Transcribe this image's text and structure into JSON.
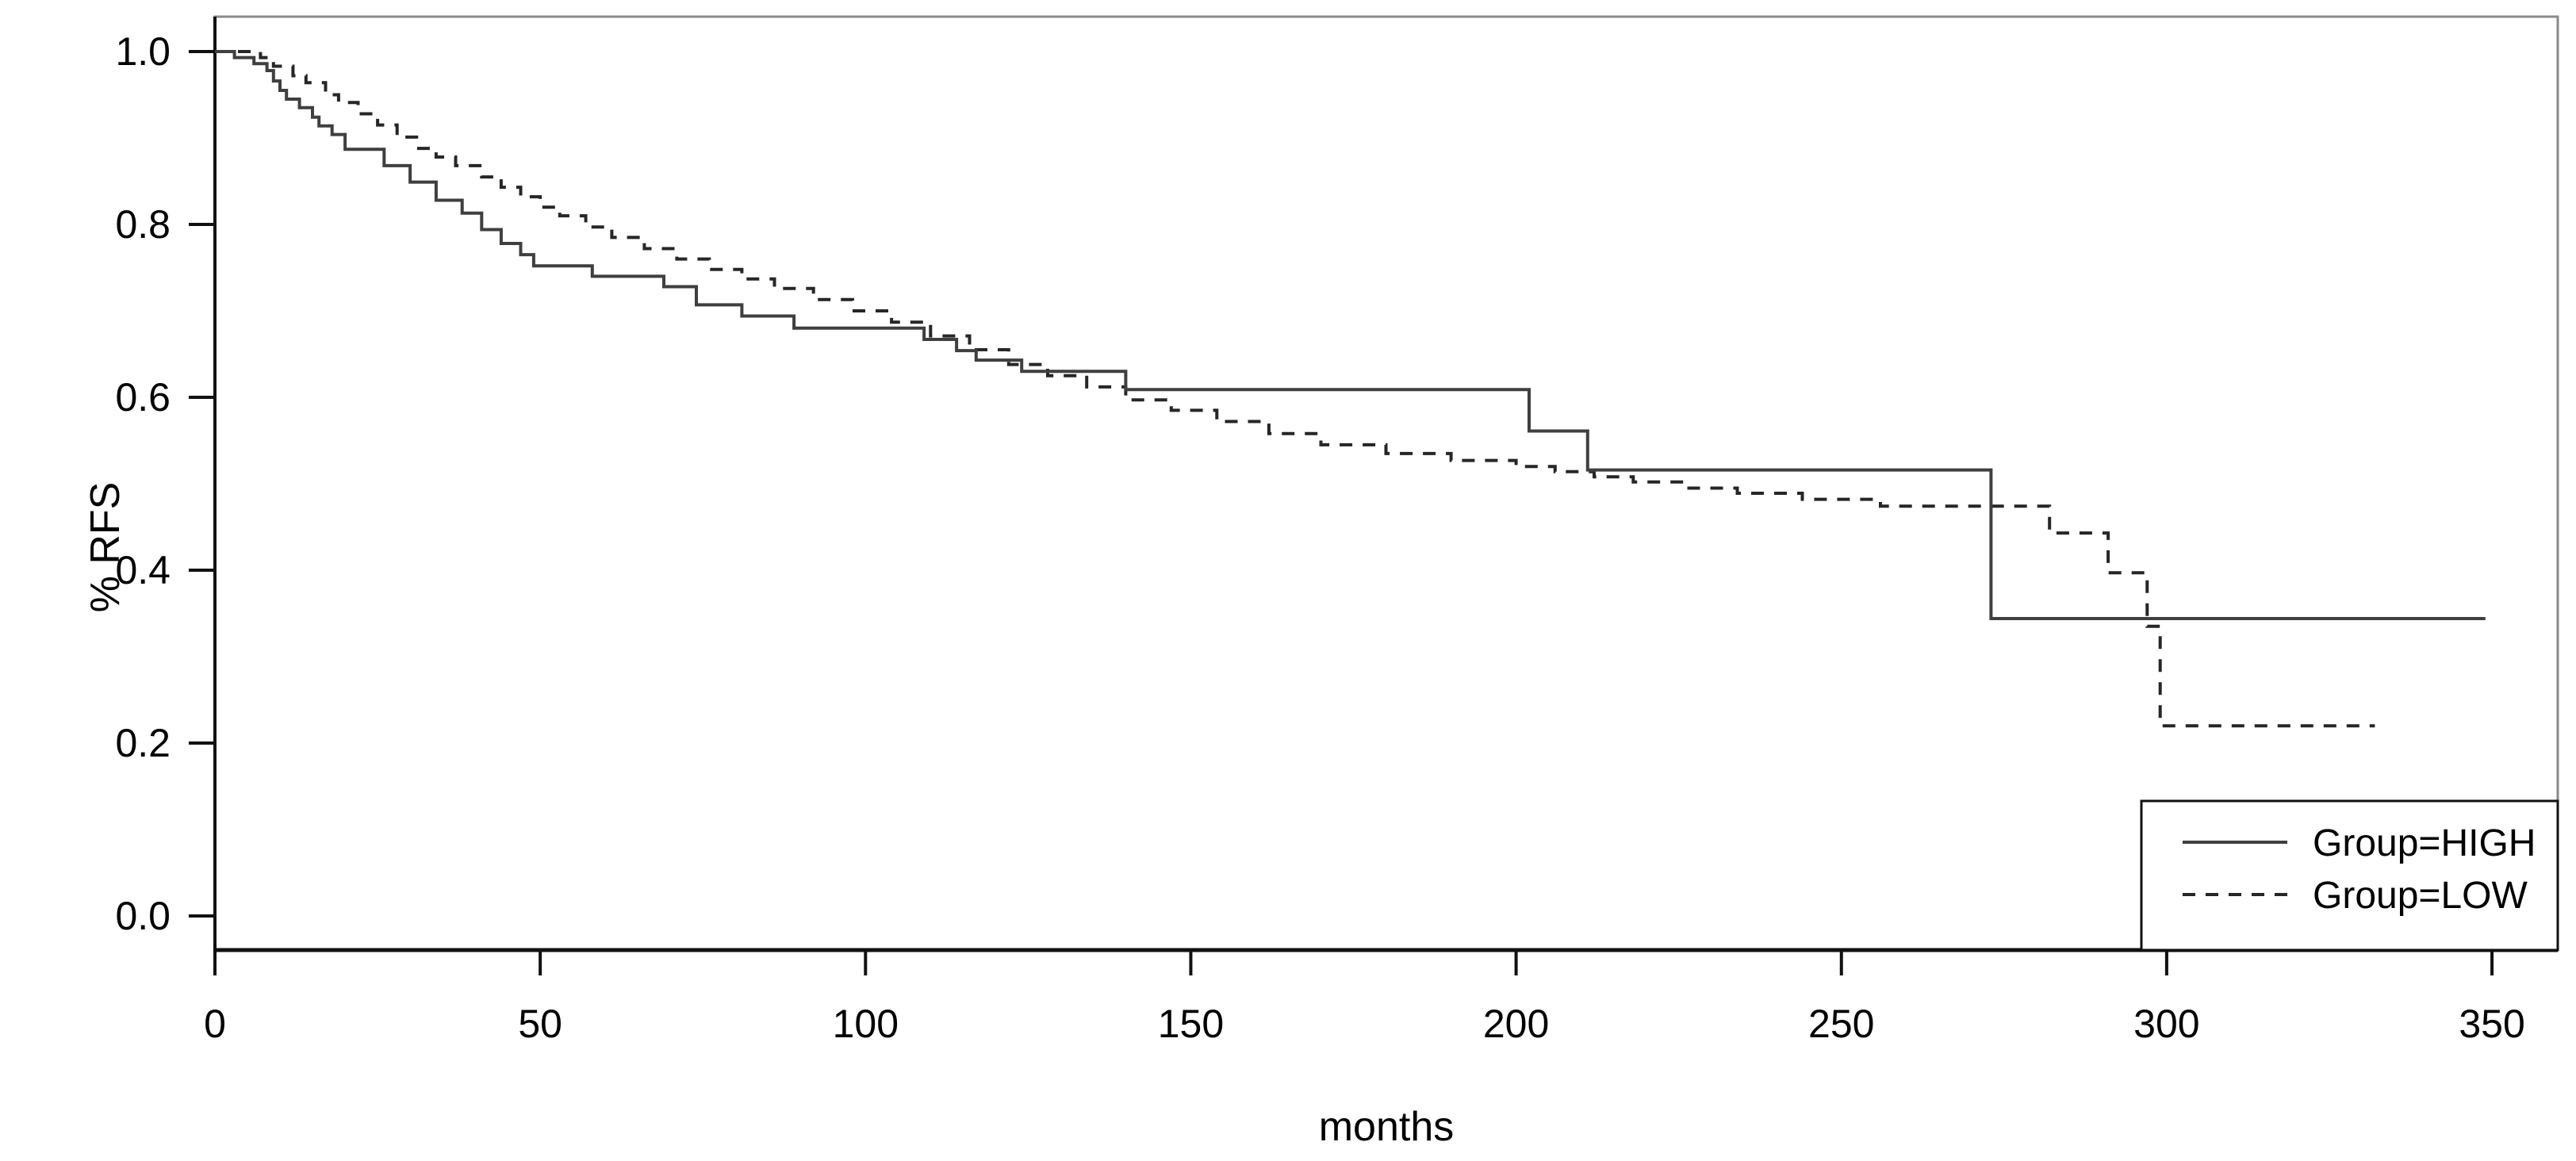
{
  "chart_data": {
    "type": "line",
    "subtype": "kaplan-meier-step",
    "title": "",
    "xlabel": "months",
    "ylabel": "% RFS",
    "xlim": [
      0,
      362
    ],
    "ylim": [
      0.0,
      1.04
    ],
    "grid": false,
    "x_ticks": [
      0,
      50,
      100,
      150,
      200,
      250,
      300,
      350
    ],
    "x_tick_labels": [
      "0",
      "50",
      "100",
      "150",
      "200",
      "250",
      "300",
      "350"
    ],
    "y_ticks": [
      0.0,
      0.2,
      0.4,
      0.6,
      0.8,
      1.0
    ],
    "y_tick_labels": [
      "0.0",
      "0.2",
      "0.4",
      "0.6",
      "0.8",
      "1.0"
    ],
    "legend": {
      "position": "bottom-right",
      "boxed": true,
      "entries": [
        {
          "label": "Group=HIGH",
          "linestyle": "solid"
        },
        {
          "label": "Group=LOW",
          "linestyle": "dashed"
        }
      ]
    },
    "colors": {
      "series_high": "#3f3f3f",
      "series_low": "#262626",
      "axis": "#111111",
      "box": "#8a8a8a",
      "text": "#000000",
      "background": "#ffffff"
    },
    "series": [
      {
        "name": "Group=HIGH",
        "linestyle": "solid",
        "end_month": 349,
        "points": [
          [
            0,
            1.0
          ],
          [
            3,
            0.993
          ],
          [
            6,
            0.986
          ],
          [
            8,
            0.978
          ],
          [
            9,
            0.966
          ],
          [
            10,
            0.955
          ],
          [
            11,
            0.945
          ],
          [
            13,
            0.935
          ],
          [
            15,
            0.924
          ],
          [
            16,
            0.914
          ],
          [
            18,
            0.904
          ],
          [
            20,
            0.887
          ],
          [
            26,
            0.868
          ],
          [
            30,
            0.849
          ],
          [
            34,
            0.828
          ],
          [
            38,
            0.813
          ],
          [
            41,
            0.794
          ],
          [
            44,
            0.778
          ],
          [
            47,
            0.765
          ],
          [
            49,
            0.752
          ],
          [
            58,
            0.74
          ],
          [
            69,
            0.728
          ],
          [
            74,
            0.707
          ],
          [
            81,
            0.694
          ],
          [
            89,
            0.68
          ],
          [
            109,
            0.667
          ],
          [
            114,
            0.654
          ],
          [
            117,
            0.643
          ],
          [
            124,
            0.63
          ],
          [
            140,
            0.609
          ],
          [
            202,
            0.561
          ],
          [
            211,
            0.516
          ],
          [
            273,
            0.344
          ]
        ]
      },
      {
        "name": "Group=LOW",
        "linestyle": "dashed",
        "end_month": 332,
        "points": [
          [
            0,
            1.0
          ],
          [
            7,
            0.993
          ],
          [
            9,
            0.983
          ],
          [
            12,
            0.972
          ],
          [
            14,
            0.964
          ],
          [
            17,
            0.95
          ],
          [
            19,
            0.941
          ],
          [
            22,
            0.928
          ],
          [
            25,
            0.915
          ],
          [
            28,
            0.901
          ],
          [
            31,
            0.888
          ],
          [
            34,
            0.878
          ],
          [
            37,
            0.868
          ],
          [
            41,
            0.855
          ],
          [
            44,
            0.843
          ],
          [
            47,
            0.832
          ],
          [
            50,
            0.82
          ],
          [
            53,
            0.81
          ],
          [
            57,
            0.797
          ],
          [
            61,
            0.785
          ],
          [
            66,
            0.772
          ],
          [
            71,
            0.76
          ],
          [
            76,
            0.748
          ],
          [
            81,
            0.737
          ],
          [
            86,
            0.726
          ],
          [
            92,
            0.713
          ],
          [
            98,
            0.7
          ],
          [
            104,
            0.687
          ],
          [
            110,
            0.671
          ],
          [
            116,
            0.655
          ],
          [
            122,
            0.638
          ],
          [
            128,
            0.625
          ],
          [
            134,
            0.612
          ],
          [
            140,
            0.597
          ],
          [
            147,
            0.585
          ],
          [
            154,
            0.572
          ],
          [
            162,
            0.558
          ],
          [
            170,
            0.545
          ],
          [
            180,
            0.535
          ],
          [
            190,
            0.527
          ],
          [
            200,
            0.52
          ],
          [
            206,
            0.514
          ],
          [
            212,
            0.508
          ],
          [
            218,
            0.502
          ],
          [
            226,
            0.495
          ],
          [
            234,
            0.489
          ],
          [
            244,
            0.482
          ],
          [
            256,
            0.474
          ],
          [
            282,
            0.443
          ],
          [
            291,
            0.397
          ],
          [
            297,
            0.335
          ],
          [
            299,
            0.22
          ]
        ]
      }
    ]
  }
}
